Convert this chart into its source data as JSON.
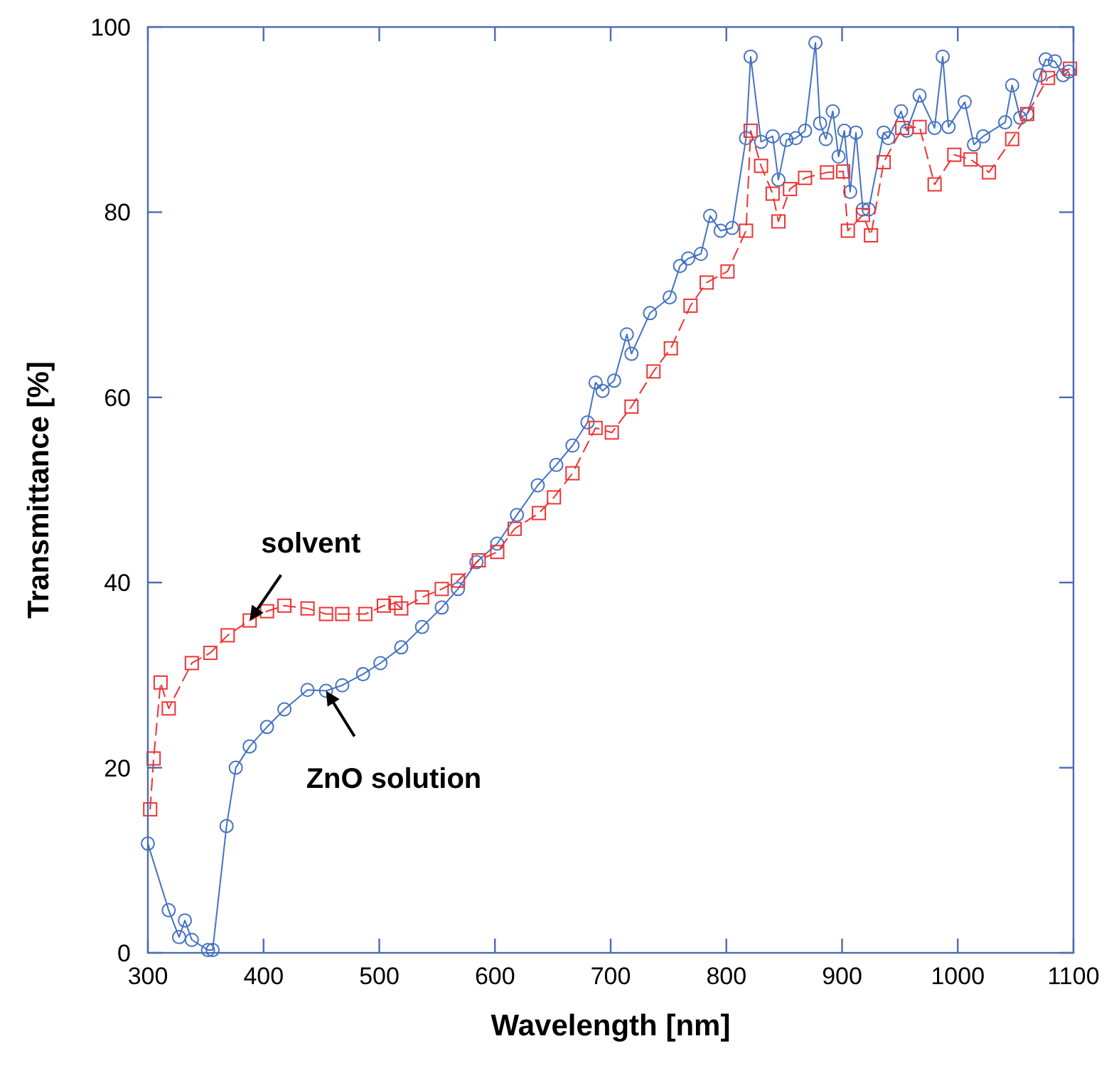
{
  "chart_data": {
    "type": "line",
    "xlabel": "Wavelength [nm]",
    "ylabel": "Transmittance [%]",
    "xlim": [
      300,
      1100
    ],
    "ylim": [
      0,
      100
    ],
    "xticks": [
      300,
      400,
      500,
      600,
      700,
      800,
      900,
      1000,
      1100
    ],
    "yticks": [
      0,
      20,
      40,
      60,
      80,
      100
    ],
    "grid": false,
    "series": [
      {
        "color": "#4472c4",
        "marker": "circle",
        "line_style": "solid",
        "x": [
          300,
          318,
          327,
          332,
          338,
          352,
          356,
          368,
          376,
          388,
          403,
          418,
          438,
          454,
          468,
          486,
          501,
          519,
          537,
          554,
          568,
          584,
          602,
          619,
          637,
          653,
          667,
          680,
          687,
          693,
          703,
          714,
          718,
          734,
          751,
          760,
          767,
          778,
          786,
          795,
          805,
          817,
          821,
          830,
          840,
          845,
          852,
          860,
          868,
          877,
          881,
          886,
          892,
          897,
          902,
          907,
          912,
          918,
          923,
          936,
          940,
          951,
          956,
          967,
          980,
          987,
          992,
          1006,
          1014,
          1022,
          1041,
          1047,
          1054,
          1060,
          1071,
          1076,
          1084,
          1091,
          1096
        ],
        "values": [
          11.8,
          4.6,
          1.7,
          3.5,
          1.4,
          0.3,
          0.3,
          13.7,
          20,
          22.3,
          24.4,
          26.3,
          28.4,
          28.3,
          28.9,
          30.1,
          31.3,
          33,
          35.2,
          37.3,
          39.3,
          42.2,
          44.2,
          47.3,
          50.5,
          52.7,
          54.8,
          57.3,
          61.6,
          60.7,
          61.8,
          66.8,
          64.7,
          69.1,
          70.8,
          74.2,
          75,
          75.5,
          79.6,
          78,
          78.3,
          88,
          96.8,
          87.6,
          88.2,
          83.5,
          87.8,
          88,
          88.8,
          98.3,
          89.6,
          87.9,
          90.9,
          86,
          88.8,
          82.2,
          88.6,
          80.3,
          80.3,
          88.6,
          88,
          90.9,
          88.8,
          92.6,
          89.1,
          96.8,
          89.2,
          91.9,
          87.3,
          88.2,
          89.7,
          93.7,
          90.2,
          90.6,
          94.8,
          96.5,
          96.3,
          94.8,
          95.2
        ]
      },
      {
        "color": "#ee3333",
        "marker": "square",
        "line_style": "dashed",
        "x": [
          302,
          305,
          311,
          318,
          338,
          354,
          369,
          388,
          403,
          418,
          438,
          454,
          468,
          488,
          504,
          514,
          519,
          537,
          554,
          568,
          586,
          602,
          617,
          638,
          651,
          667,
          687,
          701,
          718,
          737,
          752,
          769,
          783,
          801,
          817,
          821,
          830,
          840,
          845,
          855,
          868,
          887,
          901,
          905,
          918,
          925,
          936,
          952,
          967,
          980,
          997,
          1011,
          1027,
          1047,
          1060,
          1078,
          1097
        ],
        "values": [
          15.5,
          21,
          29.2,
          26.4,
          31.3,
          32.4,
          34.3,
          35.9,
          36.9,
          37.5,
          37.2,
          36.6,
          36.6,
          36.6,
          37.5,
          37.8,
          37.2,
          38.4,
          39.3,
          40.2,
          42.4,
          43.3,
          45.8,
          47.5,
          49.2,
          51.8,
          56.7,
          56.2,
          59,
          62.8,
          65.3,
          69.9,
          72.4,
          73.6,
          78,
          88.8,
          85,
          82,
          79,
          82.5,
          83.7,
          84.3,
          84.4,
          78,
          79.7,
          77.5,
          85.4,
          89.1,
          89.2,
          83,
          86.2,
          85.7,
          84.3,
          87.9,
          90.6,
          94.5,
          95.5
        ]
      }
    ],
    "annotations": [
      {
        "text": "solvent",
        "x": 388,
        "y": 35.9
      },
      {
        "text": "ZnO solution",
        "x": 454,
        "y": 28.3
      }
    ]
  }
}
